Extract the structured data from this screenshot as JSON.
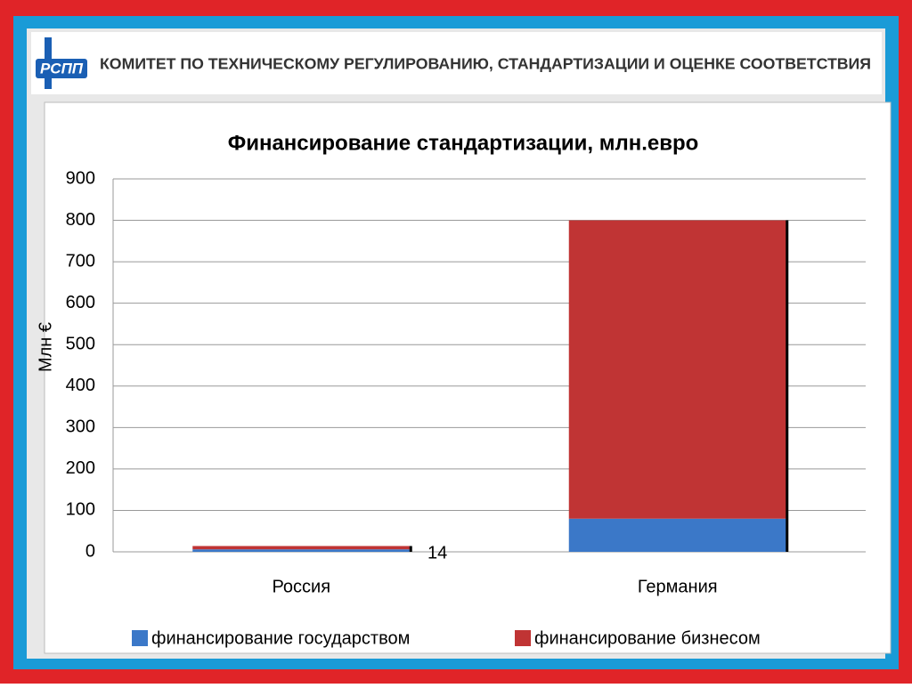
{
  "header": {
    "logo": "РСПП",
    "title": "КОМИТЕТ ПО ТЕХНИЧЕСКОМУ РЕГУЛИРОВАНИЮ, СТАНДАРТИЗАЦИИ И ОЦЕНКЕ СООТВЕТСТВИЯ"
  },
  "chart_data": {
    "type": "stacked_bar",
    "title": "Финансирование стандартизации, млн.евро",
    "y_label": "Млн €",
    "categories": [
      "Россия",
      "Германия"
    ],
    "series": [
      {
        "name": "финансирование государством",
        "color": "#3b78c8",
        "values": [
          6,
          80
        ]
      },
      {
        "name": "финансирование  бизнесом",
        "color": "#c03434",
        "values": [
          8,
          720
        ]
      }
    ],
    "annotation": "14",
    "ylim": [
      0,
      900
    ],
    "yticks": [
      0,
      100,
      200,
      300,
      400,
      500,
      600,
      700,
      800,
      900
    ],
    "grid": true,
    "legend": "bottom"
  }
}
